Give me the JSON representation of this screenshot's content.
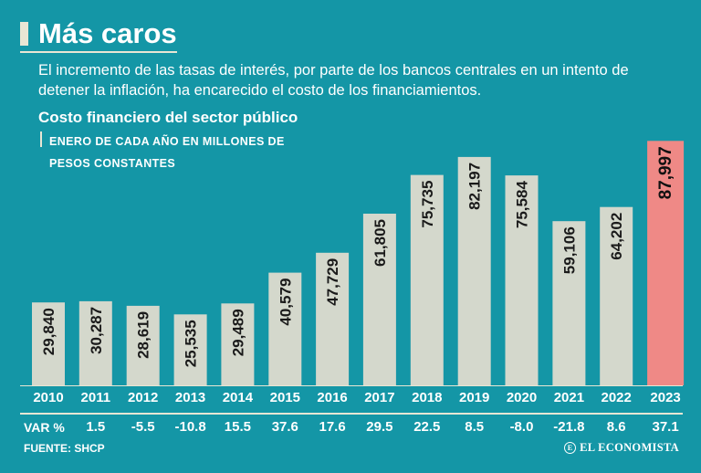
{
  "header": {
    "title": "Más caros",
    "lede": "El incremento de las tasas de interés, por parte de los bancos centrales en un intento de detener la inflación, ha encarecido el costo de los financiamientos.",
    "subtitle": "Costo financiero del sector público",
    "unit_line1": "ENERO DE CADA AÑO EN MILLONES DE",
    "unit_line2": "PESOS CONSTANTES"
  },
  "chart_data": {
    "type": "bar",
    "title": "Costo financiero del sector público",
    "subtitle": "ENERO DE CADA AÑO EN MILLONES DE PESOS CONSTANTES",
    "categories": [
      "2010",
      "2011",
      "2012",
      "2013",
      "2014",
      "2015",
      "2016",
      "2017",
      "2018",
      "2019",
      "2020",
      "2021",
      "2022",
      "2023"
    ],
    "values": [
      29840,
      30287,
      28619,
      25535,
      29489,
      40579,
      47729,
      61805,
      75735,
      82197,
      75584,
      59106,
      64202,
      87997
    ],
    "value_labels": [
      "29,840",
      "30,287",
      "28,619",
      "25,535",
      "29,489",
      "40,579",
      "47,729",
      "61,805",
      "75,735",
      "82,197",
      "75,584",
      "59,106",
      "64,202",
      "87,997"
    ],
    "highlight_category": "2023",
    "ylim": [
      0,
      95000
    ],
    "xlabel": "",
    "ylabel": "",
    "grid": false
  },
  "var_row": {
    "label": "VAR %",
    "values": [
      "1.5",
      "-5.5",
      "-10.8",
      "15.5",
      "37.6",
      "17.6",
      "29.5",
      "22.5",
      "8.5",
      "-8.0",
      "-21.8",
      "8.6",
      "37.1"
    ]
  },
  "footer": {
    "source": "FUENTE: SHCP",
    "brand": "EL ECONOMISTA",
    "brand_mark": "E"
  },
  "colors": {
    "background": "#1496a6",
    "bar": "#d4d8cc",
    "highlight_bar": "#ef8986",
    "rule": "#e9e6d4"
  }
}
